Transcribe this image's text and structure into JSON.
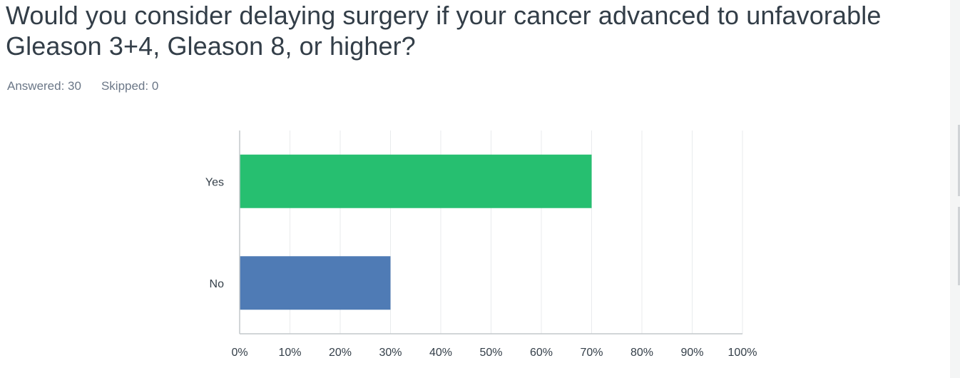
{
  "question": {
    "title": "Would you consider delaying surgery if your cancer advanced to unfavorable Gleason 3+4, Gleason 8, or higher?",
    "answered": "Answered: 30",
    "skipped": "Skipped: 0"
  },
  "colors": {
    "text": "#333e48",
    "muted": "#6b7787",
    "grid": "#e9ebed",
    "axis": "#c4c8cc"
  },
  "chart_data": {
    "type": "bar",
    "orientation": "horizontal",
    "categories": [
      "Yes",
      "No"
    ],
    "values": [
      70,
      30
    ],
    "colors": [
      "#26bf70",
      "#4f7bb5"
    ],
    "xlim": [
      0,
      100
    ],
    "xticks": [
      "0%",
      "10%",
      "20%",
      "30%",
      "40%",
      "50%",
      "60%",
      "70%",
      "80%",
      "90%",
      "100%"
    ],
    "grid": true,
    "title": "",
    "xlabel": "",
    "ylabel": ""
  }
}
